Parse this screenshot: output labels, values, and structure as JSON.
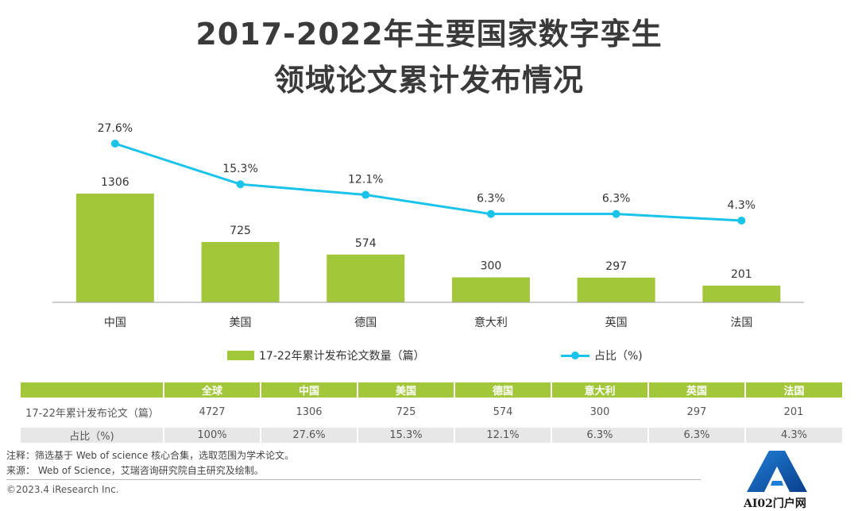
{
  "title_line1": "2017-2022年主要国家数字孪生",
  "title_line2": "领域论文累计发布情况",
  "chart_data": {
    "type": "bar",
    "categories": [
      "中国",
      "美国",
      "德国",
      "意大利",
      "英国",
      "法国"
    ],
    "series": [
      {
        "name": "17-22年累计发布论文数量（篇）",
        "type": "bar",
        "values": [
          1306,
          725,
          574,
          300,
          297,
          201
        ],
        "labels": [
          "1306",
          "725",
          "574",
          "300",
          "297",
          "201"
        ],
        "color": "#a3c73a"
      },
      {
        "name": "占比（%)",
        "type": "line",
        "values": [
          27.6,
          15.3,
          12.1,
          6.3,
          6.3,
          4.3
        ],
        "labels": [
          "27.6%",
          "15.3%",
          "12.1%",
          "6.3%",
          "6.3%",
          "4.3%"
        ],
        "color": "#19c3ea"
      }
    ],
    "title": "2017-2022年主要国家数字孪生领域论文累计发布情况",
    "grid": false,
    "legend": "bottom"
  },
  "table": {
    "headers": [
      "",
      "全球",
      "中国",
      "美国",
      "德国",
      "意大利",
      "英国",
      "法国"
    ],
    "rows": [
      [
        "17-22年累计发布论文（篇）",
        "4727",
        "1306",
        "725",
        "574",
        "300",
        "297",
        "201"
      ],
      [
        "占比（%)",
        "100%",
        "27.6%",
        "15.3%",
        "12.1%",
        "6.3%",
        "6.3%",
        "4.3%"
      ]
    ]
  },
  "footer": {
    "note": "注释：筛选基于 Web of science 核心合集，选取范围为学术论文。",
    "source": "来源：  Web of Science，艾瑞咨询研究院自主研究及绘制。",
    "copyright": "©2023.4 iResearch Inc."
  },
  "logo": {
    "text": "AI02门户网"
  }
}
